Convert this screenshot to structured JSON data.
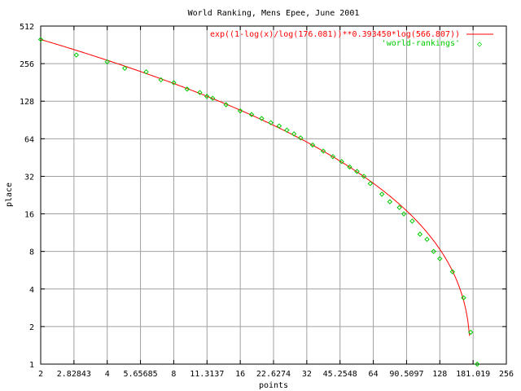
{
  "chart_data": {
    "type": "scatter",
    "title": "World Ranking, Mens Epee, June 2001",
    "xlabel": "points",
    "ylabel": "place",
    "x_scale": "log2",
    "y_scale": "log2",
    "xlim": [
      2,
      256
    ],
    "ylim": [
      1,
      512
    ],
    "x_ticks": [
      "2",
      "2.82843",
      "4",
      "5.65685",
      "8",
      "11.3137",
      "16",
      "22.6274",
      "32",
      "45.2548",
      "64",
      "90.5097",
      "128",
      "181.019",
      "256"
    ],
    "y_ticks": [
      "1",
      "2",
      "4",
      "8",
      "16",
      "32",
      "64",
      "128",
      "256",
      "512"
    ],
    "grid": true,
    "legend_position": "top-right",
    "colors": {
      "fit": "#ff0000",
      "data": "#00cc00",
      "grid": "#a0a0a0"
    },
    "series": [
      {
        "name": "exp((1-log(x)/log(176.081))**0.393450*log(566.807))",
        "kind": "line",
        "fit_params": {
          "a": 176.081,
          "b": 0.39345,
          "c": 566.807
        },
        "x_range": [
          2,
          174.5
        ]
      },
      {
        "name": "'world-rankings'",
        "kind": "points",
        "x": [
          2.0,
          2.9,
          4.0,
          4.8,
          6.0,
          7.0,
          8.0,
          9.2,
          10.5,
          11.3,
          12.0,
          13.8,
          16.0,
          18.0,
          20.0,
          22.0,
          24.0,
          26.0,
          28.0,
          30.0,
          34.0,
          38.0,
          42.0,
          46.0,
          50.0,
          54.0,
          58.0,
          62.0,
          70.0,
          76.0,
          84.0,
          88.0,
          96.0,
          104.0,
          112.0,
          120.0,
          128.0,
          146.0,
          164.0,
          176.5,
          189.0
        ],
        "y": [
          400,
          300,
          265,
          235,
          220,
          190,
          180,
          160,
          150,
          140,
          135,
          120,
          107,
          100,
          93,
          86,
          81,
          75,
          70,
          65,
          57,
          51,
          46,
          42,
          38,
          35,
          32,
          28,
          23,
          20,
          18,
          16,
          14,
          11,
          10,
          8,
          7,
          5.5,
          3.4,
          1.8,
          1.0
        ]
      }
    ]
  }
}
